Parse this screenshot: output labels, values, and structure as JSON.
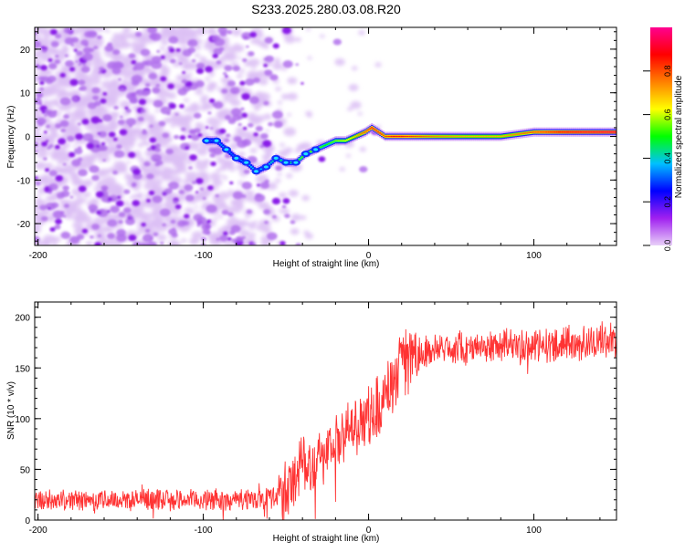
{
  "figure_title": "S233.2025.280.03.08.R20",
  "chart_data": [
    {
      "type": "heatmap",
      "title": "",
      "xlabel": "Height of straight line (km)",
      "ylabel": "Frequency (Hz)",
      "xlim": [
        -202,
        150
      ],
      "ylim": [
        -25,
        25
      ],
      "xticks": [
        -200,
        -100,
        0,
        100
      ],
      "xtick_labels": [
        "-200",
        "-100",
        "0",
        "100"
      ],
      "yticks": [
        20,
        10,
        0,
        -10,
        -20
      ],
      "ytick_labels": [
        "20",
        "10",
        "0",
        "-10",
        "-20"
      ],
      "colorbar": {
        "label": "Normalized spectral amplitude",
        "range": [
          0,
          1
        ],
        "ticks": [
          0.0,
          0.2,
          0.4,
          0.6,
          0.8
        ],
        "tick_labels": [
          "0.0",
          "0.2",
          "0.4",
          "0.6",
          "0.8"
        ],
        "colormap": [
          "#e8d0f8",
          "#a020f0",
          "#0000ff",
          "#00c0ff",
          "#00ff00",
          "#ffff00",
          "#ff8000",
          "#ff0000",
          "#ff0090"
        ]
      },
      "signal_track": {
        "x": [
          -98,
          -92,
          -86,
          -80,
          -74,
          -68,
          -62,
          -56,
          -50,
          -44,
          -38,
          -32,
          -26,
          -20,
          -14,
          -8,
          -2,
          2,
          6,
          10,
          14,
          20,
          40,
          60,
          80,
          100,
          120,
          150
        ],
        "frequency": [
          -1,
          -1,
          -3,
          -5,
          -6,
          -8,
          -7,
          -5,
          -6,
          -6,
          -4,
          -3,
          -2,
          -1,
          -1,
          0,
          1,
          2,
          1,
          0,
          0,
          0,
          0,
          0,
          0,
          1,
          1,
          1
        ],
        "amplitude": [
          0.3,
          0.35,
          0.35,
          0.3,
          0.35,
          0.4,
          0.35,
          0.45,
          0.45,
          0.5,
          0.55,
          0.55,
          0.5,
          0.55,
          0.6,
          0.7,
          0.8,
          0.85,
          0.85,
          0.8,
          0.85,
          0.85,
          0.75,
          0.7,
          0.7,
          0.8,
          0.9,
          0.95
        ]
      }
    },
    {
      "type": "line",
      "title": "",
      "xlabel": "Height of straight line (km)",
      "ylabel": "SNR (10 * v/v)",
      "xlim": [
        -202,
        150
      ],
      "ylim": [
        0,
        215
      ],
      "xticks": [
        -200,
        -100,
        0,
        100
      ],
      "xtick_labels": [
        "-200",
        "-100",
        "0",
        "100"
      ],
      "yticks": [
        0,
        50,
        100,
        150,
        200
      ],
      "ytick_labels": [
        "0",
        "50",
        "100",
        "150",
        "200"
      ],
      "color": "#ff3333",
      "series": [
        {
          "name": "SNR",
          "x": [
            -200,
            -180,
            -160,
            -140,
            -120,
            -100,
            -80,
            -70,
            -60,
            -50,
            -45,
            -40,
            -35,
            -30,
            -25,
            -20,
            -15,
            -10,
            -5,
            0,
            5,
            10,
            15,
            20,
            25,
            30,
            40,
            50,
            60,
            80,
            100,
            120,
            140,
            150
          ],
          "y": [
            20,
            20,
            20,
            20,
            20,
            20,
            20,
            21,
            22,
            25,
            40,
            65,
            55,
            62,
            68,
            75,
            80,
            90,
            100,
            105,
            110,
            120,
            135,
            155,
            160,
            165,
            168,
            170,
            170,
            172,
            172,
            173,
            176,
            178
          ]
        }
      ]
    }
  ]
}
